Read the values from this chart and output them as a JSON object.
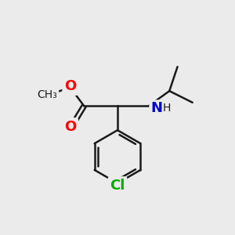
{
  "bg_color": "#ebebeb",
  "bond_color": "#1a1a1a",
  "bond_width": 1.8,
  "atom_colors": {
    "O": "#ff0000",
    "N": "#0000cc",
    "Cl": "#00aa00",
    "C": "#1a1a1a"
  },
  "font_size_atoms": 13,
  "font_size_small": 10
}
